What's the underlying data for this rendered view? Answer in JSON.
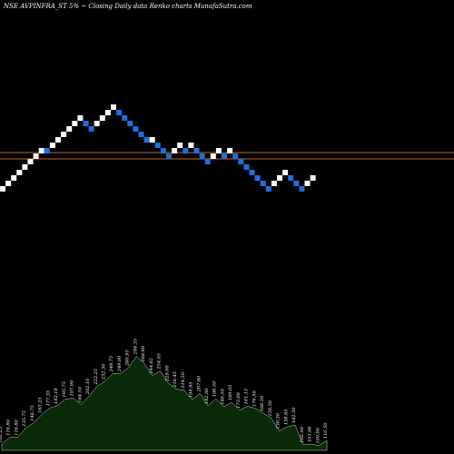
{
  "title": "NSE AVPINFRA_ST 5% ~   Closing Daily data  Renko  charts MunafaSutra.com",
  "colors": {
    "background": "#000000",
    "up_brick": "#ffffff",
    "down_brick": "#1e6fe0",
    "reference_line": "#c8641e",
    "volume_fill": "#0a2a0a",
    "volume_stroke": "#ffffff"
  },
  "chart_data": {
    "type": "renko",
    "brick_size_percent": 5,
    "reference_lines": [
      168,
      175
    ],
    "bricks": [
      {
        "close": 205,
        "dir": "up"
      },
      {
        "close": 199,
        "dir": "up"
      },
      {
        "close": 193,
        "dir": "up"
      },
      {
        "close": 187,
        "dir": "up"
      },
      {
        "close": 181,
        "dir": "up"
      },
      {
        "close": 175,
        "dir": "up"
      },
      {
        "close": 169,
        "dir": "up"
      },
      {
        "close": 163,
        "dir": "up"
      },
      {
        "close": 163,
        "dir": "down"
      },
      {
        "close": 157,
        "dir": "up"
      },
      {
        "close": 151,
        "dir": "up"
      },
      {
        "close": 145,
        "dir": "up"
      },
      {
        "close": 139,
        "dir": "up"
      },
      {
        "close": 133,
        "dir": "up"
      },
      {
        "close": 127,
        "dir": "up"
      },
      {
        "close": 133,
        "dir": "down"
      },
      {
        "close": 139,
        "dir": "down"
      },
      {
        "close": 133,
        "dir": "up"
      },
      {
        "close": 127,
        "dir": "up"
      },
      {
        "close": 121,
        "dir": "up"
      },
      {
        "close": 115,
        "dir": "up"
      },
      {
        "close": 121,
        "dir": "down"
      },
      {
        "close": 127,
        "dir": "down"
      },
      {
        "close": 133,
        "dir": "down"
      },
      {
        "close": 139,
        "dir": "down"
      },
      {
        "close": 145,
        "dir": "down"
      },
      {
        "close": 151,
        "dir": "down"
      },
      {
        "close": 151,
        "dir": "up"
      },
      {
        "close": 157,
        "dir": "down"
      },
      {
        "close": 163,
        "dir": "down"
      },
      {
        "close": 169,
        "dir": "down"
      },
      {
        "close": 163,
        "dir": "up"
      },
      {
        "close": 157,
        "dir": "up"
      },
      {
        "close": 163,
        "dir": "down"
      },
      {
        "close": 157,
        "dir": "up"
      },
      {
        "close": 163,
        "dir": "down"
      },
      {
        "close": 169,
        "dir": "down"
      },
      {
        "close": 175,
        "dir": "down"
      },
      {
        "close": 169,
        "dir": "up"
      },
      {
        "close": 163,
        "dir": "up"
      },
      {
        "close": 169,
        "dir": "down"
      },
      {
        "close": 163,
        "dir": "up"
      },
      {
        "close": 169,
        "dir": "down"
      },
      {
        "close": 175,
        "dir": "down"
      },
      {
        "close": 181,
        "dir": "down"
      },
      {
        "close": 187,
        "dir": "down"
      },
      {
        "close": 193,
        "dir": "down"
      },
      {
        "close": 199,
        "dir": "down"
      },
      {
        "close": 205,
        "dir": "down"
      },
      {
        "close": 199,
        "dir": "up"
      },
      {
        "close": 193,
        "dir": "up"
      },
      {
        "close": 187,
        "dir": "up"
      },
      {
        "close": 193,
        "dir": "down"
      },
      {
        "close": 199,
        "dir": "down"
      },
      {
        "close": 205,
        "dir": "down"
      },
      {
        "close": 199,
        "dir": "up"
      },
      {
        "close": 193,
        "dir": "up"
      }
    ],
    "volume_labels": [
      "102.25",
      "116.80",
      "116.80",
      "135.75",
      "146.75",
      "163.25",
      "177.35",
      "182.18",
      "195.75",
      "197.90",
      "184.50",
      "202.10",
      "222.25",
      "232.30",
      "248.75",
      "249.00",
      "260.95",
      "284.35",
      "268.90",
      "244.65",
      "254.05",
      "229.00",
      "216.45",
      "214.50",
      "194.95",
      "207.60",
      "182.00",
      "196.50",
      "180.50",
      "189.05",
      "173.00",
      "181.15",
      "176.50",
      "166.50",
      "156.50",
      "130.30",
      "138.65",
      "142.50",
      "102.00",
      "103.06",
      "100.00",
      "110.50"
    ]
  }
}
